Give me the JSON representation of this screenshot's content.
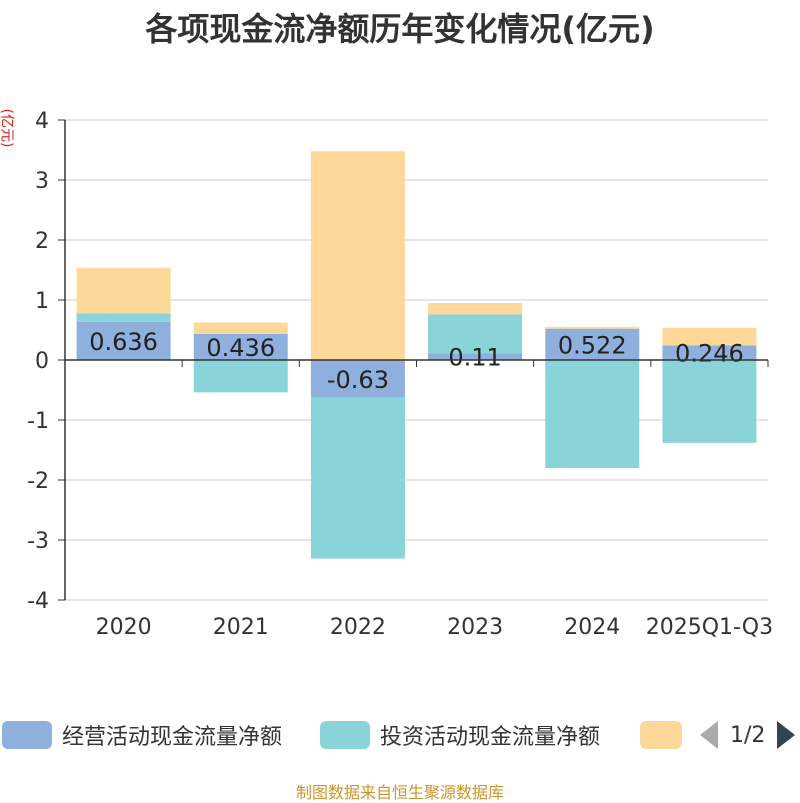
{
  "title": "各项现金流净额历年变化情况(亿元)",
  "y_unit": "(亿元)",
  "source": "制图数据来自恒生聚源数据库",
  "legend": {
    "items": [
      {
        "label": "经营活动现金流量净额",
        "color": "#8fb0dc"
      },
      {
        "label": "投资活动现金流量净额",
        "color": "#88d4d8"
      },
      {
        "label": "",
        "color": "#fed898"
      }
    ],
    "page": "1/2"
  },
  "chart_data": {
    "type": "bar",
    "stacked": true,
    "categories": [
      "2020",
      "2021",
      "2022",
      "2023",
      "2024",
      "2025Q1-Q3"
    ],
    "series": [
      {
        "name": "经营活动现金流量净额",
        "color": "#8fb0dc",
        "values": [
          0.636,
          0.436,
          -0.63,
          0.11,
          0.522,
          0.246
        ],
        "labels": [
          "0.636",
          "0.436",
          "-0.63",
          "0.11",
          "0.522",
          "0.246"
        ]
      },
      {
        "name": "投资活动现金流量净额",
        "color": "#88d4d8",
        "values": [
          0.14,
          -0.54,
          -2.68,
          0.65,
          -1.8,
          -1.38
        ]
      },
      {
        "color": "#fed898",
        "values": [
          0.76,
          0.19,
          3.48,
          0.19,
          0.03,
          0.29
        ]
      }
    ],
    "ylim": [
      -4,
      4
    ],
    "yticks": [
      4,
      3,
      2,
      1,
      0,
      -1,
      -2,
      -3,
      -4
    ],
    "grid": true,
    "legend_position": "bottom"
  }
}
